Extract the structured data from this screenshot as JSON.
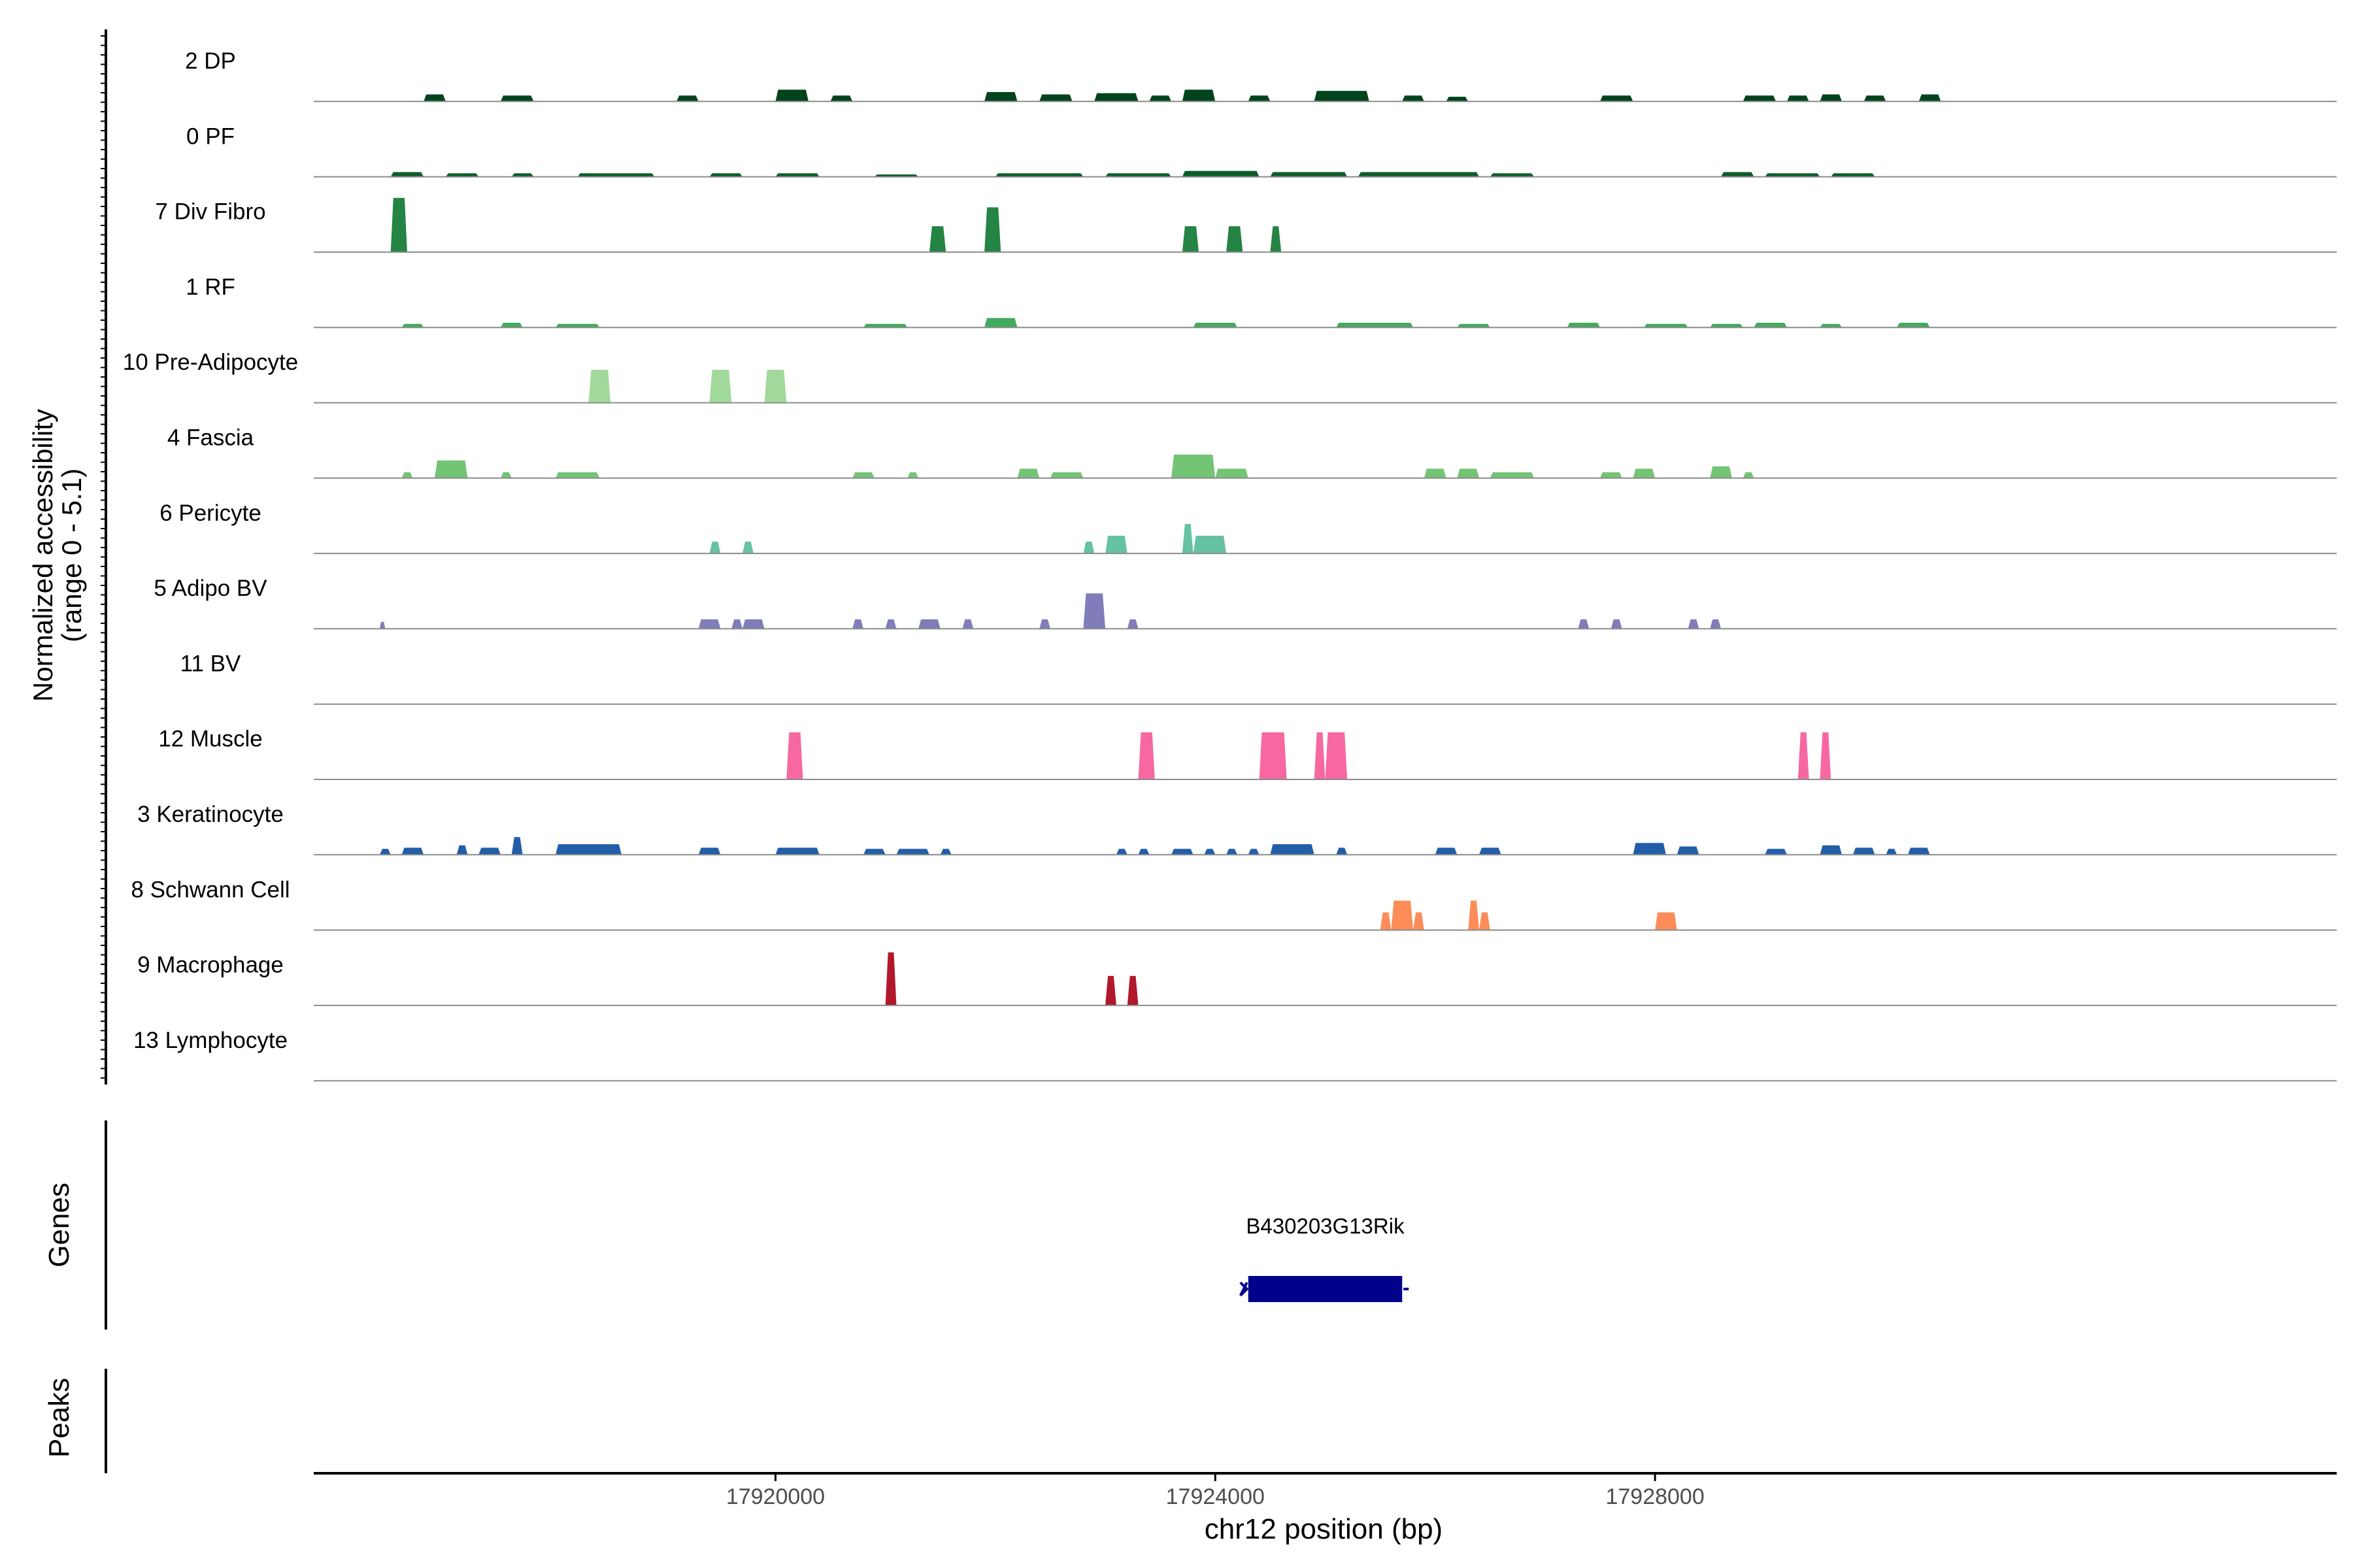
{
  "chart_data": {
    "type": "area",
    "title": "",
    "ylabel": [
      "Normalized accessibility",
      "(range 0 - 5.1)"
    ],
    "xlabel": "chr12 position (bp)",
    "y_range": [
      0,
      5.1
    ],
    "x_range": [
      17915800,
      17934200
    ],
    "x_ticks": [
      17920000,
      17924000,
      17928000
    ],
    "x_tick_labels": [
      "17920000",
      "17924000",
      "17928000"
    ],
    "series": [
      {
        "name": "2 DP",
        "color": "#00441b",
        "peaks": [
          [
            17916800,
            17917000,
            0.6
          ],
          [
            17917500,
            17917800,
            0.5
          ],
          [
            17919100,
            17919300,
            0.5
          ],
          [
            17920000,
            17920300,
            1.0
          ],
          [
            17920500,
            17920700,
            0.5
          ],
          [
            17921900,
            17922200,
            0.8
          ],
          [
            17922400,
            17922700,
            0.6
          ],
          [
            17922900,
            17923300,
            0.7
          ],
          [
            17923400,
            17923600,
            0.5
          ],
          [
            17923700,
            17924000,
            1.0
          ],
          [
            17924300,
            17924500,
            0.5
          ],
          [
            17924900,
            17925400,
            0.9
          ],
          [
            17925700,
            17925900,
            0.5
          ],
          [
            17926100,
            17926300,
            0.4
          ],
          [
            17927500,
            17927800,
            0.5
          ],
          [
            17928800,
            17929100,
            0.5
          ],
          [
            17929200,
            17929400,
            0.5
          ],
          [
            17929500,
            17929700,
            0.6
          ],
          [
            17929900,
            17930100,
            0.5
          ],
          [
            17930400,
            17930600,
            0.6
          ]
        ]
      },
      {
        "name": "0 PF",
        "color": "#0b5d2a",
        "peaks": [
          [
            17916500,
            17916800,
            0.4
          ],
          [
            17917000,
            17917300,
            0.3
          ],
          [
            17917600,
            17917800,
            0.3
          ],
          [
            17918200,
            17918900,
            0.3
          ],
          [
            17919400,
            17919700,
            0.3
          ],
          [
            17920000,
            17920400,
            0.3
          ],
          [
            17920900,
            17921300,
            0.2
          ],
          [
            17922000,
            17922800,
            0.3
          ],
          [
            17923000,
            17923600,
            0.3
          ],
          [
            17923700,
            17924400,
            0.5
          ],
          [
            17924500,
            17925200,
            0.4
          ],
          [
            17925300,
            17926400,
            0.4
          ],
          [
            17926500,
            17926900,
            0.3
          ],
          [
            17928600,
            17928900,
            0.4
          ],
          [
            17929000,
            17929500,
            0.3
          ],
          [
            17929600,
            17930000,
            0.3
          ]
        ]
      },
      {
        "name": "7 Div Fibro",
        "color": "#238443",
        "peaks": [
          [
            17916500,
            17916650,
            4.6
          ],
          [
            17921400,
            17921550,
            2.2
          ],
          [
            17921900,
            17922050,
            3.8
          ],
          [
            17923700,
            17923850,
            2.2
          ],
          [
            17924100,
            17924250,
            2.2
          ],
          [
            17924500,
            17924600,
            2.2
          ]
        ]
      },
      {
        "name": "1 RF",
        "color": "#41ab5d",
        "peaks": [
          [
            17916600,
            17916800,
            0.3
          ],
          [
            17917500,
            17917700,
            0.4
          ],
          [
            17918000,
            17918400,
            0.3
          ],
          [
            17920800,
            17921200,
            0.3
          ],
          [
            17921900,
            17922200,
            0.8
          ],
          [
            17923800,
            17924200,
            0.4
          ],
          [
            17925100,
            17925800,
            0.4
          ],
          [
            17926200,
            17926500,
            0.3
          ],
          [
            17927200,
            17927500,
            0.4
          ],
          [
            17927900,
            17928300,
            0.3
          ],
          [
            17928500,
            17928800,
            0.3
          ],
          [
            17928900,
            17929200,
            0.4
          ],
          [
            17929500,
            17929700,
            0.3
          ],
          [
            17930200,
            17930500,
            0.4
          ]
        ]
      },
      {
        "name": "10 Pre-Adipocyte",
        "color": "#a1d99b",
        "peaks": [
          [
            17918300,
            17918500,
            2.8
          ],
          [
            17919400,
            17919600,
            2.8
          ],
          [
            17919900,
            17920100,
            2.8
          ]
        ]
      },
      {
        "name": "4 Fascia",
        "color": "#74c476",
        "peaks": [
          [
            17916600,
            17916700,
            0.5
          ],
          [
            17916900,
            17917200,
            1.5
          ],
          [
            17917500,
            17917600,
            0.5
          ],
          [
            17918000,
            17918400,
            0.5
          ],
          [
            17920700,
            17920900,
            0.5
          ],
          [
            17921200,
            17921300,
            0.5
          ],
          [
            17922200,
            17922400,
            0.8
          ],
          [
            17922500,
            17922800,
            0.5
          ],
          [
            17923600,
            17924000,
            2.0
          ],
          [
            17924000,
            17924300,
            0.8
          ],
          [
            17925900,
            17926100,
            0.8
          ],
          [
            17926200,
            17926400,
            0.8
          ],
          [
            17926500,
            17926900,
            0.5
          ],
          [
            17927500,
            17927700,
            0.5
          ],
          [
            17927800,
            17928000,
            0.8
          ],
          [
            17928500,
            17928700,
            1.0
          ],
          [
            17928800,
            17928900,
            0.5
          ]
        ]
      },
      {
        "name": "6 Pericyte",
        "color": "#66c2a4",
        "peaks": [
          [
            17919400,
            17919500,
            1.0
          ],
          [
            17919700,
            17919800,
            1.0
          ],
          [
            17922800,
            17922900,
            1.0
          ],
          [
            17923000,
            17923200,
            1.5
          ],
          [
            17923700,
            17923800,
            2.5
          ],
          [
            17923800,
            17924100,
            1.5
          ]
        ]
      },
      {
        "name": "5 Adipo BV",
        "color": "#807dba",
        "peaks": [
          [
            17916400,
            17916450,
            0.6
          ],
          [
            17919300,
            17919500,
            0.8
          ],
          [
            17919600,
            17919700,
            0.8
          ],
          [
            17919700,
            17919900,
            0.8
          ],
          [
            17920700,
            17920800,
            0.8
          ],
          [
            17921000,
            17921100,
            0.8
          ],
          [
            17921300,
            17921500,
            0.8
          ],
          [
            17921700,
            17921800,
            0.8
          ],
          [
            17922400,
            17922500,
            0.8
          ],
          [
            17922800,
            17923000,
            3.0
          ],
          [
            17923200,
            17923300,
            0.8
          ],
          [
            17927300,
            17927400,
            0.8
          ],
          [
            17927600,
            17927700,
            0.8
          ],
          [
            17928300,
            17928400,
            0.8
          ],
          [
            17928500,
            17928600,
            0.8
          ]
        ]
      },
      {
        "name": "11 BV",
        "color": "#6a51a3",
        "peaks": []
      },
      {
        "name": "12 Muscle",
        "color": "#f768a1",
        "peaks": [
          [
            17920100,
            17920250,
            4.0
          ],
          [
            17923300,
            17923450,
            4.0
          ],
          [
            17924400,
            17924650,
            4.0
          ],
          [
            17924900,
            17925000,
            4.0
          ],
          [
            17925000,
            17925200,
            4.0
          ],
          [
            17929300,
            17929400,
            4.0
          ],
          [
            17929500,
            17929600,
            4.0
          ]
        ]
      },
      {
        "name": "3 Keratinocyte",
        "color": "#225ea8",
        "peaks": [
          [
            17916400,
            17916500,
            0.5
          ],
          [
            17916600,
            17916800,
            0.6
          ],
          [
            17917100,
            17917200,
            0.8
          ],
          [
            17917300,
            17917500,
            0.6
          ],
          [
            17917600,
            17917700,
            1.5
          ],
          [
            17918000,
            17918600,
            0.9
          ],
          [
            17919300,
            17919500,
            0.6
          ],
          [
            17920000,
            17920400,
            0.6
          ],
          [
            17920800,
            17921000,
            0.5
          ],
          [
            17921100,
            17921400,
            0.5
          ],
          [
            17921500,
            17921600,
            0.5
          ],
          [
            17923100,
            17923200,
            0.5
          ],
          [
            17923300,
            17923400,
            0.5
          ],
          [
            17923600,
            17923800,
            0.5
          ],
          [
            17923900,
            17924000,
            0.5
          ],
          [
            17924100,
            17924200,
            0.5
          ],
          [
            17924300,
            17924400,
            0.5
          ],
          [
            17924500,
            17924900,
            0.9
          ],
          [
            17925100,
            17925200,
            0.6
          ],
          [
            17926000,
            17926200,
            0.6
          ],
          [
            17926400,
            17926600,
            0.6
          ],
          [
            17927800,
            17928100,
            1.0
          ],
          [
            17928200,
            17928400,
            0.7
          ],
          [
            17929000,
            17929200,
            0.5
          ],
          [
            17929500,
            17929700,
            0.8
          ],
          [
            17929800,
            17930000,
            0.6
          ],
          [
            17930100,
            17930200,
            0.5
          ],
          [
            17930300,
            17930500,
            0.6
          ]
        ]
      },
      {
        "name": "8 Schwann Cell",
        "color": "#fc8d59",
        "peaks": [
          [
            17925500,
            17925600,
            1.5
          ],
          [
            17925600,
            17925800,
            2.5
          ],
          [
            17925800,
            17925900,
            1.5
          ],
          [
            17926300,
            17926400,
            2.5
          ],
          [
            17926400,
            17926500,
            1.5
          ],
          [
            17928000,
            17928200,
            1.5
          ]
        ]
      },
      {
        "name": "9 Macrophage",
        "color": "#b2182b",
        "peaks": [
          [
            17921000,
            17921100,
            4.5
          ],
          [
            17923000,
            17923100,
            2.5
          ],
          [
            17923200,
            17923300,
            2.5
          ]
        ]
      },
      {
        "name": "13 Lymphocyte",
        "color": "#993404",
        "peaks": []
      }
    ],
    "genes_label": "Genes",
    "peaks_label": "Peaks",
    "gene": {
      "name": "B430203G13Rik",
      "start": 17924300,
      "end": 17925700,
      "strand": "-",
      "color": "#00008b"
    }
  }
}
